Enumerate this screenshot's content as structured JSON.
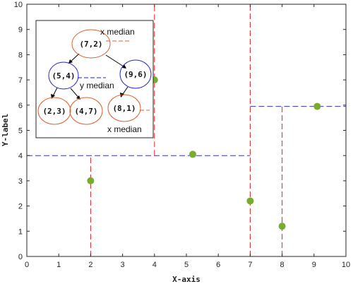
{
  "chart_data": {
    "type": "scatter",
    "title": "",
    "xlabel": "X-axis",
    "ylabel": "Y-label",
    "xlim": [
      0,
      10
    ],
    "ylim": [
      0,
      10
    ],
    "xticks": [
      0,
      1,
      2,
      3,
      4,
      5,
      6,
      7,
      8,
      9,
      10
    ],
    "yticks": [
      0,
      1,
      2,
      3,
      4,
      5,
      6,
      7,
      8,
      9,
      10
    ],
    "grid": false,
    "points": [
      {
        "x": 2,
        "y": 3
      },
      {
        "x": 4,
        "y": 7
      },
      {
        "x": 5.2,
        "y": 4.05
      },
      {
        "x": 7,
        "y": 2.2
      },
      {
        "x": 8,
        "y": 1.2
      },
      {
        "x": 9.1,
        "y": 5.95
      }
    ],
    "point_color": "#77ac30",
    "split_lines": [
      {
        "orientation": "vertical",
        "x": 7,
        "y_range": [
          0,
          10
        ],
        "color": "#e02020"
      },
      {
        "orientation": "horizontal",
        "y": 4,
        "x_range": [
          0,
          7
        ],
        "color": "#3333cc"
      },
      {
        "orientation": "horizontal",
        "y": 5.95,
        "x_range": [
          7,
          10
        ],
        "color": "#3333cc"
      },
      {
        "orientation": "vertical",
        "x": 2,
        "y_range": [
          0,
          4
        ],
        "color": "#e02020"
      },
      {
        "orientation": "vertical",
        "x": 4,
        "y_range": [
          4,
          10
        ],
        "color": "#e02020"
      },
      {
        "orientation": "vertical",
        "x": 8,
        "y_range": [
          0,
          5.95
        ],
        "color": "#e02020"
      }
    ],
    "inset_tree": {
      "nodes": [
        {
          "id": "root",
          "label": "(7,2)",
          "color": "#e06030"
        },
        {
          "id": "l",
          "label": "(5,4)",
          "color": "#2222cc"
        },
        {
          "id": "r",
          "label": "(9,6)",
          "color": "#2222cc"
        },
        {
          "id": "ll",
          "label": "(2,3)",
          "color": "#e06030"
        },
        {
          "id": "lr",
          "label": "(4,7)",
          "color": "#e06030"
        },
        {
          "id": "rl",
          "label": "(8,1)",
          "color": "#e06030"
        }
      ],
      "annotations": [
        "x median",
        "y median",
        "x median"
      ]
    }
  }
}
